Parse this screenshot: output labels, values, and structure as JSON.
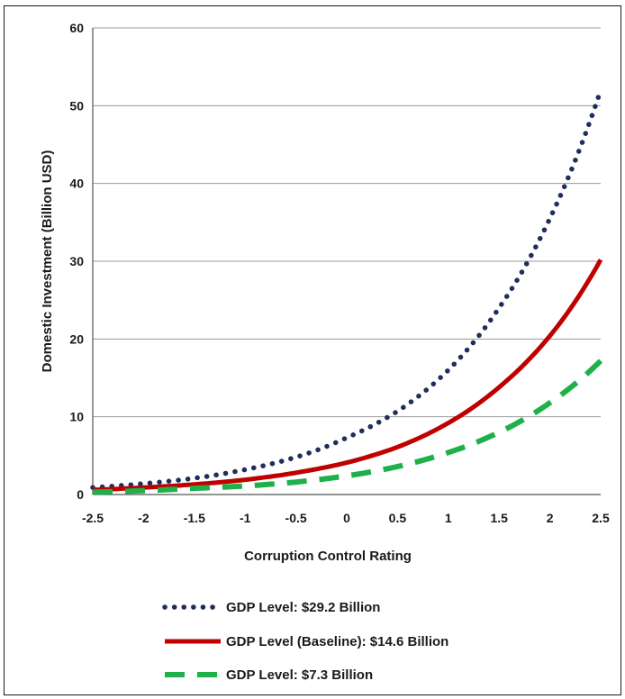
{
  "chart_data": {
    "type": "line",
    "title": "",
    "xlabel": "Corruption Control Rating",
    "ylabel": "Domestic Investment (Billion USD)",
    "x": [
      -2.5,
      -2,
      -1.5,
      -1,
      -0.5,
      0,
      0.5,
      1,
      1.5,
      2,
      2.5
    ],
    "x_ticks": [
      "-2.5",
      "-2",
      "-1.5",
      "-1",
      "-0.5",
      "0",
      "0.5",
      "1",
      "1.5",
      "2",
      "2.5"
    ],
    "y_ticks": [
      "0",
      "10",
      "20",
      "30",
      "40",
      "50",
      "60"
    ],
    "xlim": [
      -2.5,
      2.5
    ],
    "ylim": [
      0,
      60
    ],
    "grid": "horizontal",
    "legend_position": "bottom",
    "series": [
      {
        "name": "GDP Level: $29.2 Billion",
        "color": "#1f2d5c",
        "style": "dotted",
        "values": [
          0.9,
          1.4,
          2.1,
          3.2,
          4.8,
          7.3,
          10.7,
          16.0,
          24.0,
          35.5,
          52.0
        ]
      },
      {
        "name": "GDP Level (Baseline): $14.6 Billion",
        "color": "#c00000",
        "style": "solid",
        "values": [
          0.6,
          0.9,
          1.3,
          1.9,
          2.8,
          4.1,
          6.1,
          9.2,
          13.8,
          20.4,
          30.2
        ]
      },
      {
        "name": "GDP Level: $7.3 Billion",
        "color": "#1fb04a",
        "style": "dashed",
        "values": [
          0.3,
          0.5,
          0.8,
          1.1,
          1.6,
          2.4,
          3.6,
          5.4,
          8.0,
          11.8,
          17.2
        ]
      }
    ]
  }
}
